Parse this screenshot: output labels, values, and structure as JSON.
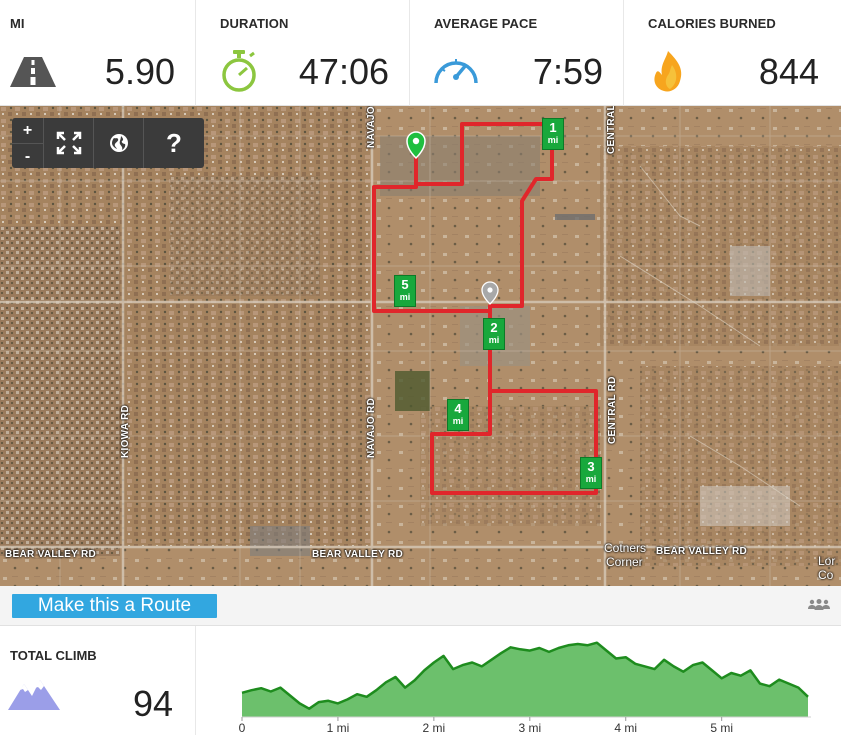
{
  "stats": [
    {
      "label": "MI",
      "value": "5.90",
      "icon": "road-icon"
    },
    {
      "label": "DURATION",
      "value": "47:06",
      "icon": "stopwatch-icon"
    },
    {
      "label": "AVERAGE PACE",
      "value": "7:59",
      "icon": "speedometer-icon"
    },
    {
      "label": "CALORIES BURNED",
      "value": "844",
      "icon": "flame-icon"
    }
  ],
  "map": {
    "controls": {
      "zoom_in": "+",
      "zoom_out": "-",
      "fullscreen_icon": "fullscreen-icon",
      "globe_icon": "globe-icon",
      "help": "?"
    },
    "road_labels": {
      "navajo_top": "NAVAJO RD",
      "central_top": "CENTRAL RD",
      "kiowa": "KIOWA RD",
      "navajo_bottom": "NAVAJO RD",
      "central_bottom": "CENTRAL RD",
      "bear_valley_1": "BEAR VALLEY RD",
      "bear_valley_2": "BEAR VALLEY RD",
      "bear_valley_3": "BEAR VALLEY RD"
    },
    "place_labels": {
      "cotners_line1": "Cotners",
      "cotners_line2": "Corner",
      "edge_top": "Lor",
      "edge_bottom": "Co"
    },
    "mile_markers": [
      {
        "num": "1",
        "unit": "mi"
      },
      {
        "num": "2",
        "unit": "mi"
      },
      {
        "num": "3",
        "unit": "mi"
      },
      {
        "num": "4",
        "unit": "mi"
      },
      {
        "num": "5",
        "unit": "mi"
      }
    ],
    "colors": {
      "route": "#e0262b",
      "start_pin": "#1fbf3f",
      "marker": "#18a83c"
    }
  },
  "toolbar": {
    "route_button_label": "Make this a Route",
    "people_icon": "people-icon"
  },
  "climb": {
    "label": "TOTAL CLIMB",
    "value": "94",
    "icon": "mountain-icon"
  },
  "chart_data": {
    "type": "area",
    "x_unit": "mi",
    "x_ticks": [
      "0",
      "1 mi",
      "2 mi",
      "3 mi",
      "4 mi",
      "5 mi"
    ],
    "xlim": [
      0,
      5.9
    ],
    "x": [
      0,
      0.1,
      0.2,
      0.3,
      0.4,
      0.5,
      0.6,
      0.7,
      0.8,
      0.9,
      1.0,
      1.1,
      1.2,
      1.3,
      1.4,
      1.5,
      1.6,
      1.7,
      1.8,
      1.9,
      2.0,
      2.1,
      2.2,
      2.3,
      2.4,
      2.5,
      2.6,
      2.7,
      2.8,
      2.9,
      3.0,
      3.1,
      3.2,
      3.3,
      3.4,
      3.5,
      3.6,
      3.7,
      3.8,
      3.9,
      4.0,
      4.1,
      4.2,
      4.3,
      4.4,
      4.5,
      4.6,
      4.7,
      4.8,
      4.9,
      5.0,
      5.1,
      5.2,
      5.3,
      5.4,
      5.5,
      5.6,
      5.7,
      5.8,
      5.9
    ],
    "values": [
      0.26,
      0.3,
      0.33,
      0.28,
      0.34,
      0.22,
      0.1,
      0.02,
      0.12,
      0.14,
      0.1,
      0.16,
      0.24,
      0.2,
      0.3,
      0.42,
      0.5,
      0.34,
      0.45,
      0.6,
      0.72,
      0.82,
      0.62,
      0.68,
      0.72,
      0.66,
      0.76,
      0.86,
      0.95,
      0.92,
      0.9,
      0.94,
      0.88,
      0.94,
      0.98,
      1.0,
      0.98,
      1.02,
      0.9,
      0.78,
      0.8,
      0.7,
      0.66,
      0.62,
      0.76,
      0.66,
      0.58,
      0.68,
      0.72,
      0.6,
      0.48,
      0.56,
      0.52,
      0.6,
      0.4,
      0.36,
      0.46,
      0.4,
      0.34,
      0.2
    ],
    "grid": false,
    "colors": {
      "line": "#1e8c1e",
      "fill": "#6cc06c"
    }
  }
}
